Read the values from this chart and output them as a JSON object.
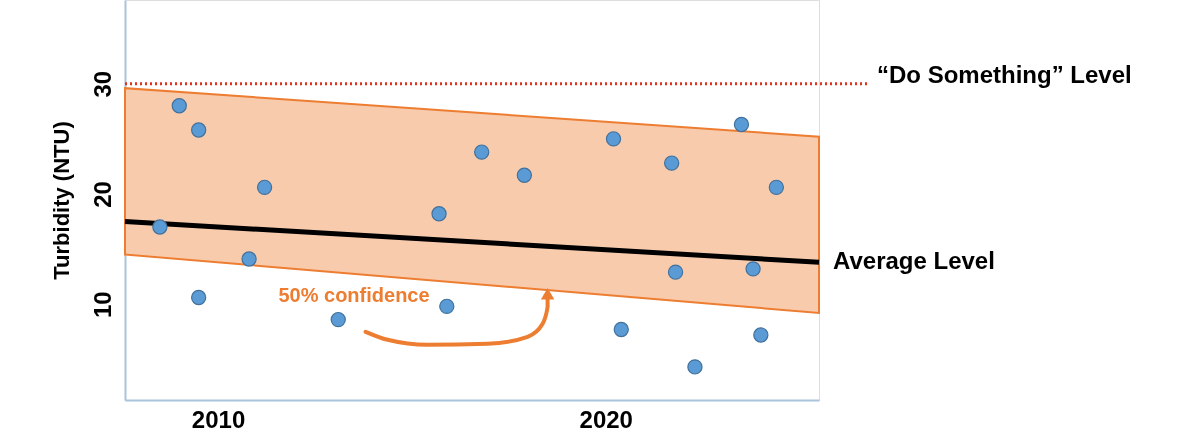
{
  "chart_data": {
    "type": "scatter",
    "ylabel": "Turbidity (NTU)",
    "x": [
      2008.5,
      2009.0,
      2009.5,
      2009.5,
      2010.8,
      2011.2,
      2013.1,
      2015.7,
      2015.9,
      2016.8,
      2017.9,
      2020.2,
      2020.4,
      2021.7,
      2021.8,
      2022.3,
      2023.5,
      2023.8,
      2024.0,
      2024.4
    ],
    "series": [
      {
        "color": "#5b9bd5",
        "marker": "circle",
        "values": [
          17.0,
          28.0,
          25.8,
          10.6,
          14.1,
          20.6,
          8.6,
          18.2,
          9.8,
          23.8,
          21.7,
          25.0,
          7.7,
          22.8,
          12.9,
          4.3,
          26.3,
          13.2,
          7.2,
          20.6
        ]
      },
      {
        "type": "line",
        "marker": "none",
        "name": "Average  Level",
        "color": "#000000",
        "x": [
          2007.6,
          2025.5
        ],
        "values": [
          17.5,
          13.8
        ],
        "lower": [
          14.5,
          9.2
        ],
        "upper": [
          29.6,
          25.2
        ]
      }
    ],
    "xlim": [
      2007.6,
      2025.5
    ],
    "ylim": [
      1.3,
      37.6
    ],
    "xticks": [
      2010,
      2020
    ],
    "yticks": [
      10,
      20,
      30
    ],
    "ref_lines": [
      {
        "axis": "y",
        "value": 30,
        "label": "“Do Something” Level",
        "color": "#e0301e",
        "line_style": "dotted"
      }
    ],
    "annotations": [
      {
        "text": "50% confidence",
        "x": 2018.5,
        "y": 11.3
      }
    ],
    "grid": false
  }
}
